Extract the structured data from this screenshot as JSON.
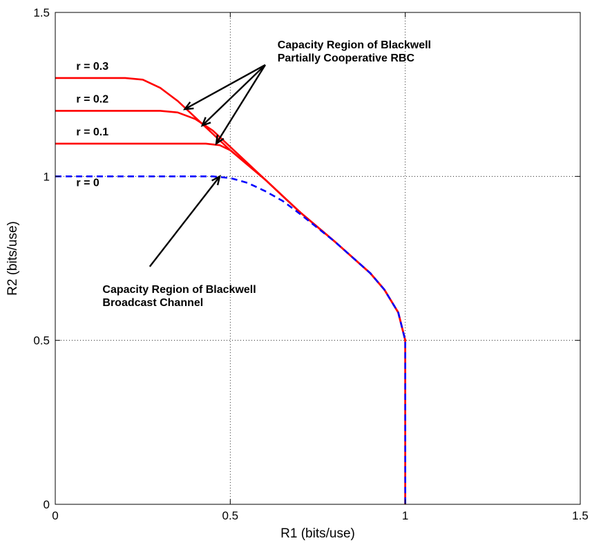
{
  "chart_data": {
    "type": "line",
    "title": "",
    "xlabel": "R1 (bits/use)",
    "ylabel": "R2 (bits/use)",
    "xlim": [
      0,
      1.5
    ],
    "ylim": [
      0,
      1.5
    ],
    "xticks": [
      "0",
      "0.5",
      "1",
      "1.5"
    ],
    "yticks": [
      "0",
      "0.5",
      "1",
      "1.5"
    ],
    "grid": true,
    "series": [
      {
        "name": "r = 0.3",
        "color": "#ff0000",
        "style": "solid",
        "x": [
          0,
          0.1,
          0.2,
          0.25,
          0.3,
          0.35,
          0.4,
          0.5,
          0.6,
          0.65,
          0.7,
          0.8,
          0.9,
          0.94,
          0.98,
          1.0,
          1.0
        ],
        "y": [
          1.3,
          1.3,
          1.3,
          1.295,
          1.27,
          1.23,
          1.18,
          1.08,
          0.99,
          0.94,
          0.89,
          0.8,
          0.705,
          0.655,
          0.585,
          0.5,
          0
        ]
      },
      {
        "name": "r = 0.2",
        "color": "#ff0000",
        "style": "solid",
        "x": [
          0,
          0.1,
          0.2,
          0.3,
          0.35,
          0.4,
          0.45,
          0.5,
          0.6,
          0.65,
          0.7,
          0.8,
          0.9,
          0.94,
          0.98,
          1.0,
          1.0
        ],
        "y": [
          1.2,
          1.2,
          1.2,
          1.2,
          1.195,
          1.175,
          1.14,
          1.09,
          0.99,
          0.94,
          0.89,
          0.8,
          0.705,
          0.655,
          0.585,
          0.5,
          0
        ]
      },
      {
        "name": "r = 0.1",
        "color": "#ff0000",
        "style": "solid",
        "x": [
          0,
          0.1,
          0.2,
          0.3,
          0.4,
          0.43,
          0.47,
          0.5,
          0.55,
          0.6,
          0.65,
          0.7,
          0.8,
          0.9,
          0.94,
          0.98,
          1.0,
          1.0
        ],
        "y": [
          1.1,
          1.1,
          1.1,
          1.1,
          1.1,
          1.1,
          1.095,
          1.08,
          1.035,
          0.99,
          0.94,
          0.89,
          0.8,
          0.705,
          0.655,
          0.585,
          0.5,
          0
        ]
      },
      {
        "name": "r = 0",
        "color": "#0000ff",
        "style": "dashed",
        "x": [
          0,
          0.1,
          0.2,
          0.3,
          0.4,
          0.45,
          0.5,
          0.55,
          0.6,
          0.65,
          0.7,
          0.8,
          0.9,
          0.94,
          0.98,
          1.0,
          1.0
        ],
        "y": [
          1.0,
          1.0,
          1.0,
          1.0,
          1.0,
          1.0,
          0.995,
          0.98,
          0.955,
          0.925,
          0.885,
          0.8,
          0.705,
          0.655,
          0.585,
          0.5,
          0
        ]
      }
    ],
    "annotations": [
      {
        "text": "r = 0.3",
        "x": 0.06,
        "y": 1.325
      },
      {
        "text": "r = 0.2",
        "x": 0.06,
        "y": 1.225
      },
      {
        "text": "r = 0.1",
        "x": 0.06,
        "y": 1.125
      },
      {
        "text": "r = 0",
        "x": 0.06,
        "y": 0.97
      },
      {
        "text": "Capacity Region of Blackwell",
        "x": 0.635,
        "y": 1.39
      },
      {
        "text": "Partially Cooperative RBC",
        "x": 0.635,
        "y": 1.35
      },
      {
        "text": "Capacity Region of Blackwell",
        "x": 0.135,
        "y": 0.645
      },
      {
        "text": "Broadcast Channel",
        "x": 0.135,
        "y": 0.605
      }
    ],
    "arrows": [
      {
        "from": [
          0.6,
          1.34
        ],
        "to": [
          0.37,
          1.205
        ]
      },
      {
        "from": [
          0.6,
          1.34
        ],
        "to": [
          0.42,
          1.155
        ]
      },
      {
        "from": [
          0.6,
          1.34
        ],
        "to": [
          0.46,
          1.1
        ]
      },
      {
        "from": [
          0.27,
          0.725
        ],
        "to": [
          0.47,
          1.0
        ]
      }
    ]
  }
}
